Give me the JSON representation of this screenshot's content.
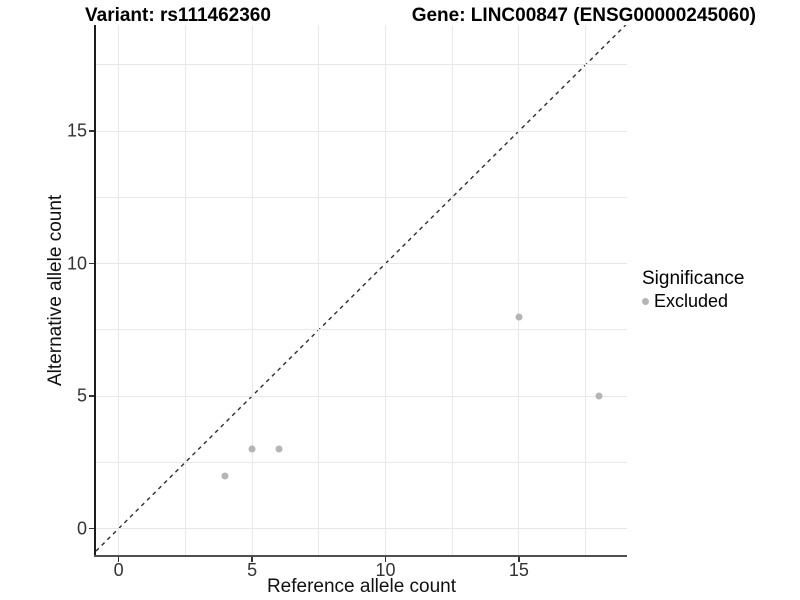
{
  "chart_data": {
    "type": "scatter",
    "title_left": "Variant: rs111462360",
    "title_right": "Gene: LINC00847 (ENSG00000245060)",
    "xlabel": "Reference allele count",
    "ylabel": "Alternative allele count",
    "x_range": [
      -0.85,
      19.05
    ],
    "y_range": [
      -1,
      19
    ],
    "x_ticks": [
      0,
      5,
      10,
      15
    ],
    "y_ticks": [
      0,
      5,
      10,
      15
    ],
    "minor_gridlines": [
      2.5,
      7.5,
      12.5,
      17.5
    ],
    "grid": "on",
    "points": [
      {
        "x": 4,
        "y": 2,
        "series": "Excluded"
      },
      {
        "x": 5,
        "y": 3,
        "series": "Excluded"
      },
      {
        "x": 6,
        "y": 3,
        "series": "Excluded"
      },
      {
        "x": 15,
        "y": 8,
        "series": "Excluded"
      },
      {
        "x": 18,
        "y": 5,
        "series": "Excluded"
      }
    ],
    "identity_line": {
      "equation": "y = x",
      "style": "dashed",
      "color": "#2d2d2d"
    },
    "colors": {
      "point": "#b5b5b5",
      "gridline": "#e8e8e8",
      "axis_text": "#333333",
      "title": "#000000"
    },
    "legend": {
      "title": "Significance",
      "position": "right",
      "items": [
        {
          "label": "Excluded",
          "color": "#b5b5b5"
        }
      ]
    }
  }
}
